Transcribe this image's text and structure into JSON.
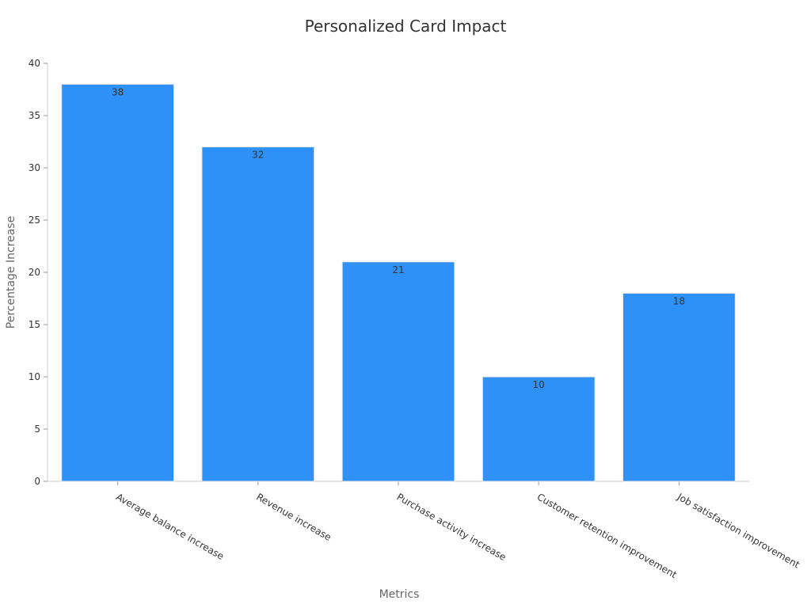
{
  "chart_data": {
    "type": "bar",
    "title": "Personalized Card Impact",
    "xlabel": "Metrics",
    "ylabel": "Percentage Increase",
    "categories": [
      "Average balance increase",
      "Revenue increase",
      "Purchase activity increase",
      "Customer retention improvement",
      "Job satisfaction improvement"
    ],
    "values": [
      38,
      32,
      21,
      10,
      18
    ],
    "ylim": [
      0,
      40
    ],
    "yticks": [
      0,
      5,
      10,
      15,
      20,
      25,
      30,
      35,
      40
    ],
    "grid": false,
    "data_labels": true,
    "bar_color": "#2d91f7"
  }
}
